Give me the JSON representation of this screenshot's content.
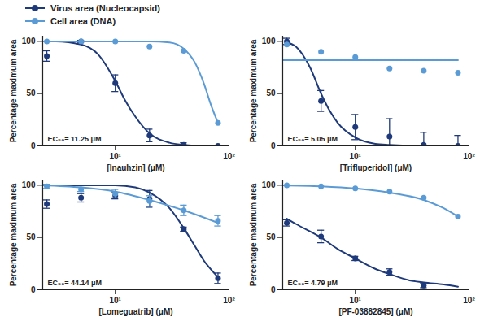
{
  "chart_data": [
    {
      "type": "scatter",
      "log": "x",
      "legend": "top",
      "xlabel": "[Inauhzin] (μM)",
      "ylabel": "Percentage maximum area",
      "annotation": "EC₅₀= 11.25 μM",
      "xlim": [
        2.3,
        100
      ],
      "xticks": [
        {
          "value": 10,
          "label": "10¹"
        },
        {
          "value": 100,
          "label": "10²"
        }
      ],
      "ylim": [
        0,
        105
      ],
      "yticks": [
        0,
        50,
        100
      ],
      "series": [
        {
          "name": "Virus area (Nucleocapsid)",
          "color": "#1f3a7a",
          "marker": "circle",
          "line_style": "solid",
          "x": [
            2.5,
            5,
            10,
            20,
            40,
            80
          ],
          "values": [
            86,
            100,
            60,
            10,
            1,
            0
          ],
          "error": [
            5,
            1,
            8,
            6,
            2,
            0
          ],
          "curve_x": [
            2.3,
            3,
            5,
            7,
            10,
            12,
            15,
            20,
            30,
            40,
            60,
            80
          ],
          "curve_values": [
            100,
            100,
            97,
            88,
            62,
            45,
            28,
            12,
            3,
            1,
            0,
            0
          ]
        },
        {
          "name": "Cell area (DNA)",
          "color": "#5b9bd5",
          "marker": "circle",
          "line_style": "solid",
          "x": [
            2.5,
            5,
            10,
            20,
            40,
            80
          ],
          "values": [
            100,
            100,
            100,
            95,
            91,
            22
          ],
          "curve_x": [
            2.3,
            5,
            10,
            20,
            30,
            40,
            50,
            60,
            70,
            80
          ],
          "curve_values": [
            100,
            100,
            100,
            100,
            99,
            93,
            80,
            60,
            38,
            22
          ]
        }
      ]
    },
    {
      "type": "scatter",
      "log": "x",
      "xlabel": "[Trifluperidol] (μM)",
      "ylabel": "Percentage maximum area",
      "annotation": "EC₅₀= 5.05 μM",
      "xlim": [
        2.3,
        100
      ],
      "xticks": [
        {
          "value": 10,
          "label": "10¹"
        },
        {
          "value": 100,
          "label": "10²"
        }
      ],
      "ylim": [
        0,
        105
      ],
      "yticks": [
        0,
        50,
        100
      ],
      "series": [
        {
          "name": "Virus area (Nucleocapsid)",
          "color": "#1f3a7a",
          "marker": "circle",
          "line_style": "solid",
          "x": [
            2.5,
            5,
            10,
            20,
            40,
            80
          ],
          "values": [
            100,
            43,
            18,
            9,
            1,
            0
          ],
          "error": [
            3,
            10,
            12,
            17,
            12,
            10
          ],
          "curve_x": [
            2.5,
            3,
            4,
            5,
            6,
            7,
            10,
            15,
            20,
            40,
            80
          ],
          "curve_values": [
            99,
            95,
            75,
            50,
            33,
            22,
            8,
            2,
            1,
            0,
            0
          ]
        },
        {
          "name": "Cell area (DNA)",
          "color": "#5b9bd5",
          "marker": "circle",
          "line_style": "solid",
          "x": [
            2.5,
            5,
            10,
            20,
            40,
            80
          ],
          "values": [
            97,
            90,
            85,
            74,
            72,
            70
          ],
          "curve_x": [
            2.3,
            80
          ],
          "curve_values": [
            82,
            82
          ]
        }
      ]
    },
    {
      "type": "scatter",
      "log": "x",
      "xlabel": "[Lomeguatrib] (μM)",
      "ylabel": "Percentage maximum area",
      "annotation": "EC₅₀= 44.14 μM",
      "xlim": [
        2.3,
        100
      ],
      "xticks": [
        {
          "value": 10,
          "label": "10¹"
        },
        {
          "value": 100,
          "label": "10²"
        }
      ],
      "ylim": [
        0,
        105
      ],
      "yticks": [
        0,
        50,
        100
      ],
      "series": [
        {
          "name": "Virus area (Nucleocapsid)",
          "color": "#1f3a7a",
          "marker": "circle",
          "line_style": "solid",
          "x": [
            2.5,
            5,
            10,
            20,
            40,
            80
          ],
          "values": [
            82,
            88,
            90,
            87,
            58,
            11
          ],
          "error": [
            4,
            4,
            3,
            8,
            2,
            5
          ],
          "curve_x": [
            2.3,
            10,
            15,
            20,
            30,
            40,
            50,
            60,
            80
          ],
          "curve_values": [
            100,
            100,
            98,
            93,
            78,
            59,
            42,
            28,
            12
          ]
        },
        {
          "name": "Cell area (DNA)",
          "color": "#5b9bd5",
          "marker": "circle",
          "line_style": "solid",
          "x": [
            2.5,
            5,
            10,
            20,
            40,
            80
          ],
          "values": [
            99,
            96,
            92,
            85,
            76,
            66
          ],
          "error": [
            2,
            2,
            4,
            5,
            5,
            5
          ],
          "curve_x": [
            2.3,
            5,
            10,
            20,
            40,
            80
          ],
          "curve_values": [
            100,
            98,
            94,
            86,
            76,
            64
          ]
        }
      ]
    },
    {
      "type": "scatter",
      "log": "x",
      "xlabel": "[PF-03882845] (μM)",
      "ylabel": "Percentage maximum area",
      "annotation": "EC₅₀= 4.79 μM",
      "xlim": [
        2.3,
        100
      ],
      "xticks": [
        {
          "value": 10,
          "label": "10¹"
        },
        {
          "value": 100,
          "label": "10²"
        }
      ],
      "ylim": [
        0,
        105
      ],
      "yticks": [
        0,
        50,
        100
      ],
      "series": [
        {
          "name": "Virus area (Nucleocapsid)",
          "color": "#1f3a7a",
          "marker": "circle",
          "line_style": "solid",
          "x": [
            2.5,
            5,
            10,
            20,
            40
          ],
          "values": [
            64,
            51,
            30,
            17,
            4
          ],
          "error": [
            3,
            6,
            2,
            3,
            2
          ],
          "curve_x": [
            2.5,
            3,
            5,
            7,
            10,
            15,
            20,
            30,
            40,
            60,
            80
          ],
          "curve_values": [
            68,
            63,
            50,
            39,
            30,
            20,
            15,
            9,
            7,
            5,
            3
          ]
        },
        {
          "name": "Cell area (DNA)",
          "color": "#5b9bd5",
          "marker": "circle",
          "line_style": "solid",
          "x": [
            2.5,
            5,
            10,
            20,
            40,
            80
          ],
          "values": [
            100,
            99,
            97,
            94,
            88,
            70
          ],
          "curve_x": [
            2.3,
            5,
            10,
            20,
            40,
            60,
            80
          ],
          "curve_values": [
            100,
            99,
            97,
            93,
            86,
            78,
            70
          ]
        }
      ]
    }
  ]
}
